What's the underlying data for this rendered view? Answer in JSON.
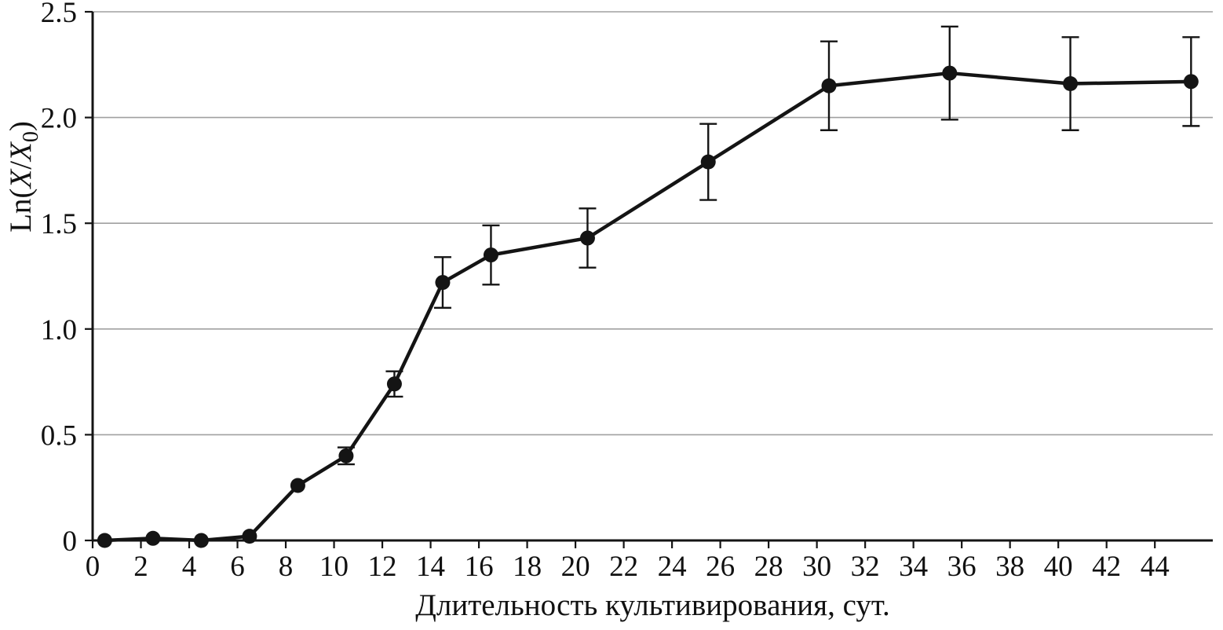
{
  "chart_data": {
    "type": "line",
    "title": "",
    "xlabel": "Длительность культивирования, сут.",
    "ylabel": "Ln(X/X₀)",
    "ylabel_parts": {
      "prefix": "Ln(",
      "var1": "X",
      "slash": "/",
      "var2": "X",
      "subscript": "0",
      "suffix": ")"
    },
    "xlim": [
      0,
      46.4
    ],
    "ylim": [
      0,
      2.5
    ],
    "xticks": [
      0,
      2,
      4,
      6,
      8,
      10,
      12,
      14,
      16,
      18,
      20,
      22,
      24,
      26,
      28,
      30,
      32,
      34,
      36,
      38,
      40,
      42,
      44
    ],
    "yticks": [
      {
        "value": 0,
        "label": "0"
      },
      {
        "value": 0.5,
        "label": "0.5"
      },
      {
        "value": 1.0,
        "label": "1.0"
      },
      {
        "value": 1.5,
        "label": "1.5"
      },
      {
        "value": 2.0,
        "label": "2.0"
      },
      {
        "value": 2.5,
        "label": "2.5"
      }
    ],
    "grid": "horizontal-only",
    "legend": "none",
    "series": [
      {
        "marker": "filled-circle",
        "x": [
          0.5,
          2.5,
          4.5,
          6.5,
          8.5,
          10.5,
          12.5,
          14.5,
          16.5,
          20.5,
          25.5,
          30.5,
          35.5,
          40.5,
          45.5
        ],
        "y": [
          0.0,
          0.01,
          0.0,
          0.02,
          0.26,
          0.4,
          0.74,
          1.22,
          1.35,
          1.43,
          1.79,
          2.15,
          2.21,
          2.16,
          2.17
        ],
        "yerr": [
          0,
          0,
          0,
          0,
          0,
          0.04,
          0.06,
          0.12,
          0.14,
          0.14,
          0.18,
          0.21,
          0.22,
          0.22,
          0.21
        ]
      }
    ],
    "colors": {
      "line": "#141414",
      "marker": "#141414",
      "errorbar": "#141414",
      "grid": "#a0a0a0",
      "axis": "#141414",
      "text": "#111111",
      "background": "#ffffff"
    }
  }
}
